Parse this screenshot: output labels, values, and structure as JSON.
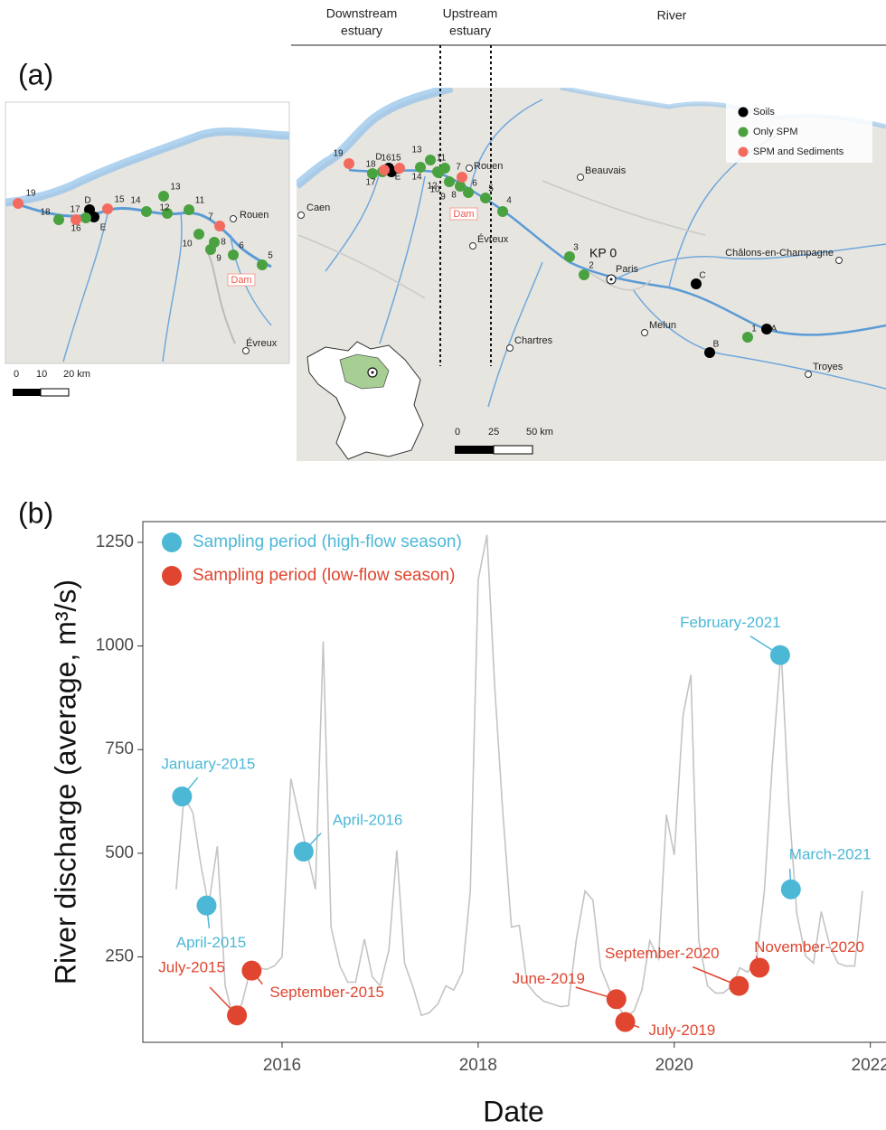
{
  "panel_a": {
    "label": "(a)",
    "zones": [
      [
        "Downstream",
        "estuary"
      ],
      [
        "Upstream",
        "estuary"
      ],
      [
        "River"
      ]
    ],
    "legend": [
      {
        "name": "Soils",
        "color": "#000000"
      },
      {
        "name": "Only SPM",
        "color": "#4aa13f"
      },
      {
        "name": "SPM and Sediments",
        "color": "#f36b5f"
      }
    ],
    "map_points": [
      [
        "A",
        "B",
        "C",
        "D",
        "E"
      ],
      [
        "1",
        "2",
        "3",
        "4",
        "5",
        "6",
        "8",
        "9",
        "10",
        "11",
        "12",
        "13",
        "14",
        "17",
        "18"
      ],
      [
        "7",
        "15",
        "16",
        "19"
      ]
    ],
    "inset_points": [
      [
        "D",
        "E"
      ],
      [
        "5",
        "6",
        "8",
        "9",
        "10",
        "11",
        "12",
        "13",
        "14",
        "17",
        "18"
      ],
      [
        "7",
        "15",
        "16",
        "19"
      ]
    ],
    "places": [
      "Rouen",
      "Évreux",
      "Caen",
      "Beauvais",
      "Paris",
      "Chartres",
      "Melun",
      "Châlons-en-Champagne",
      "Troyes"
    ],
    "kp": "KP 0",
    "dam": "Dam",
    "inset_places": [
      "Rouen",
      "Évreux"
    ],
    "inset_dam": "Dam",
    "scale_inset": [
      "0",
      "10",
      "20 km"
    ],
    "scale_map": [
      "0",
      "25",
      "50 km"
    ]
  },
  "chart_data": {
    "type": "line",
    "panel_label": "(b)",
    "x_label": "Date",
    "y_label": "River discharge (average, m³/s)",
    "color": "#c4c4c4",
    "x": [
      2014.92,
      2015.0,
      2015.09,
      2015.17,
      2015.25,
      2015.34,
      2015.42,
      2015.5,
      2015.59,
      2015.67,
      2015.75,
      2015.84,
      2015.92,
      2016.0,
      2016.09,
      2016.17,
      2016.25,
      2016.34,
      2016.42,
      2016.5,
      2016.59,
      2016.67,
      2016.75,
      2016.84,
      2016.92,
      2017.0,
      2017.09,
      2017.17,
      2017.25,
      2017.34,
      2017.42,
      2017.5,
      2017.59,
      2017.67,
      2017.75,
      2017.84,
      2017.92,
      2018.0,
      2018.09,
      2018.17,
      2018.25,
      2018.34,
      2018.42,
      2018.5,
      2018.59,
      2018.67,
      2018.75,
      2018.84,
      2018.92,
      2019.0,
      2019.09,
      2019.17,
      2019.25,
      2019.34,
      2019.42,
      2019.5,
      2019.59,
      2019.67,
      2019.75,
      2019.84,
      2019.92,
      2020.0,
      2020.09,
      2020.17,
      2020.25,
      2020.34,
      2020.42,
      2020.5,
      2020.59,
      2020.67,
      2020.75,
      2020.84,
      2020.92,
      2021.0,
      2021.09,
      2021.17,
      2021.25,
      2021.34,
      2021.42,
      2021.5,
      2021.59,
      2021.67,
      2021.75,
      2021.84,
      2021.92
    ],
    "values": [
      413,
      637,
      598,
      474,
      374,
      517,
      180,
      104,
      137,
      213,
      224,
      220,
      228,
      250,
      680,
      593,
      507,
      413,
      1011,
      322,
      228,
      189,
      189,
      293,
      202,
      180,
      267,
      507,
      235,
      174,
      109,
      115,
      137,
      180,
      170,
      213,
      409,
      1159,
      1268,
      898,
      604,
      322,
      326,
      185,
      159,
      143,
      137,
      130,
      132,
      289,
      409,
      387,
      224,
      170,
      137,
      102,
      120,
      170,
      289,
      246,
      593,
      496,
      833,
      930,
      289,
      180,
      163,
      163,
      180,
      224,
      213,
      246,
      409,
      715,
      991,
      617,
      354,
      252,
      235,
      359,
      274,
      235,
      228,
      228,
      409
    ],
    "series": [
      {
        "name": "Sampling period (high-flow season)",
        "color": "#4cb8d6",
        "x": [
          2014.98,
          2015.23,
          2016.22,
          2021.08,
          2021.19
        ],
        "values": [
          637,
          374,
          504,
          978,
          413
        ],
        "labels": [
          "January-2015",
          "April-2015",
          "April-2016",
          "February-2021",
          "March-2021"
        ]
      },
      {
        "name": "Sampling period (low-flow season)",
        "color": "#e0452f",
        "x": [
          2015.54,
          2015.69,
          2019.41,
          2019.5,
          2020.66,
          2020.87
        ],
        "values": [
          109,
          217,
          148,
          93,
          180,
          224
        ],
        "labels": [
          "July-2015",
          "September-2015",
          "June-2019",
          "July-2019",
          "September-2020",
          "November-2020"
        ]
      }
    ],
    "xlim": [
      2014.58,
      2022.16
    ],
    "xticks": [
      2016,
      2018,
      2020,
      2022
    ],
    "ylim": [
      44,
      1300
    ],
    "yticks": [
      250,
      500,
      750,
      1000,
      1250
    ],
    "grid": false,
    "legend": "top-left"
  }
}
